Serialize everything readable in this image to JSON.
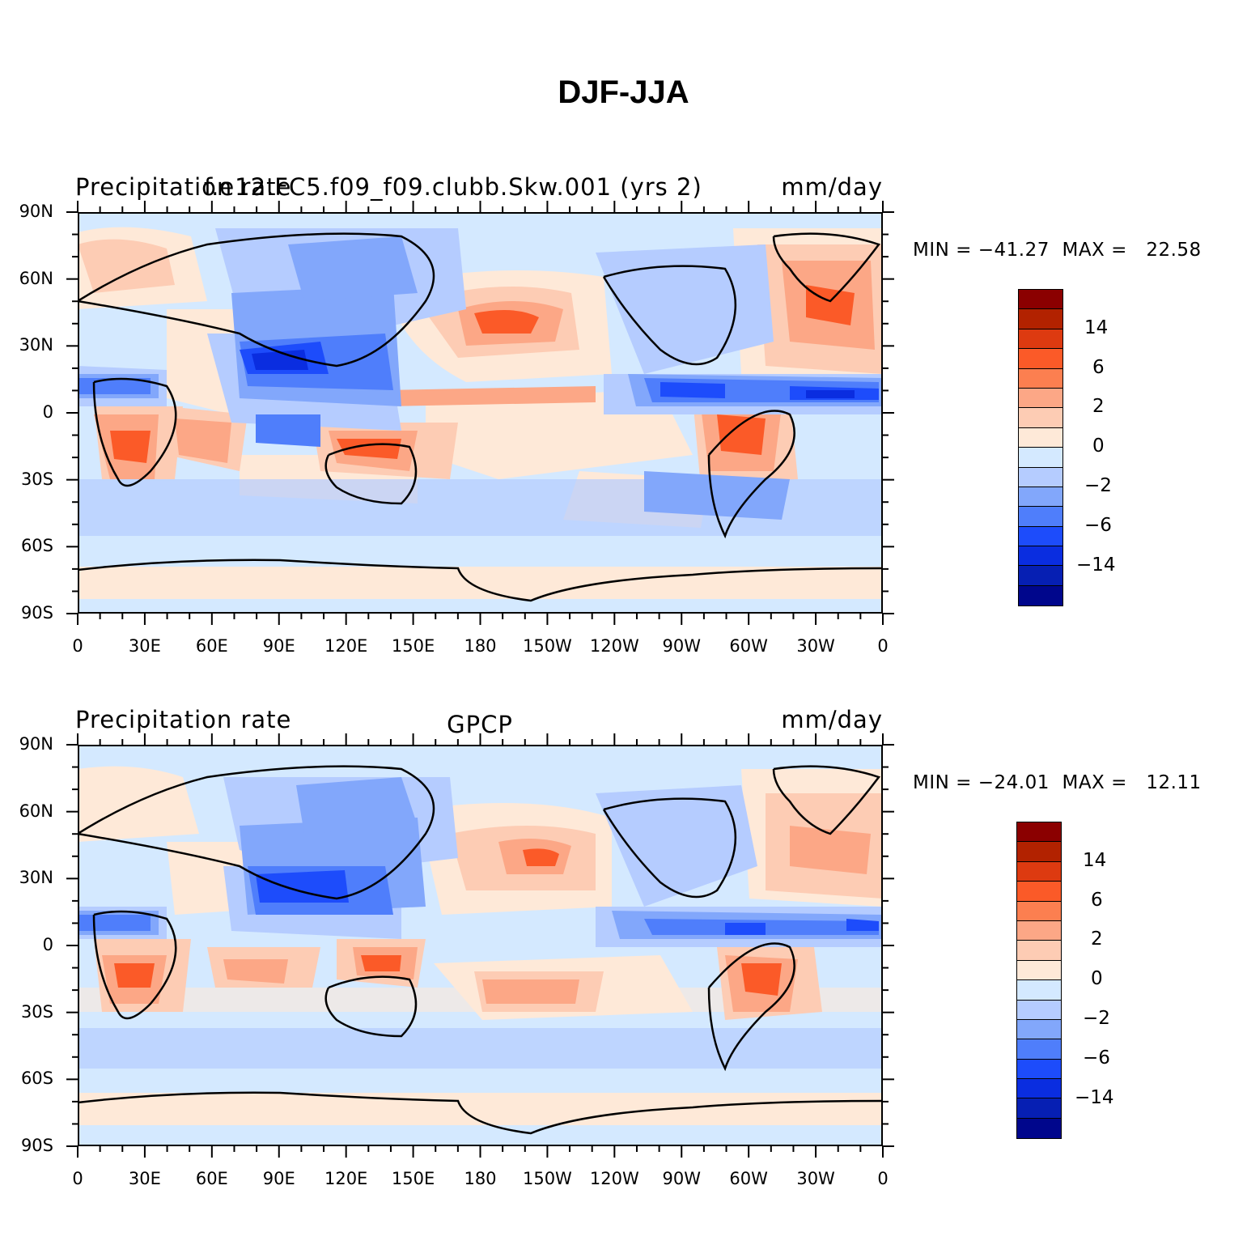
{
  "title": "DJF-JJA",
  "panels": [
    {
      "variable": "Precipitation rate",
      "case": "f.e12.FC5.f09_f09.clubb.Skw.001 (yrs 2)",
      "units": "mm/day",
      "min_label": "MIN = −41.27",
      "max_label": "MAX =   22.58"
    },
    {
      "variable": "Precipitation rate",
      "case": "GPCP",
      "units": "mm/day",
      "min_label": "MIN = −24.01",
      "max_label": "MAX =   12.11"
    }
  ],
  "lat_ticks": [
    "90N",
    "60N",
    "30N",
    "0",
    "30S",
    "60S",
    "90S"
  ],
  "lon_ticks": [
    "0",
    "30E",
    "60E",
    "90E",
    "120E",
    "150E",
    "180",
    "150W",
    "120W",
    "90W",
    "60W",
    "30W",
    "0"
  ],
  "colorbar": {
    "labels": [
      "14",
      "6",
      "2",
      "0",
      "−2",
      "−6",
      "−14"
    ],
    "colors": [
      "#8b0000",
      "#b22200",
      "#dd3a10",
      "#fb5a28",
      "#fc7f50",
      "#fca786",
      "#fdccb4",
      "#fee9d8",
      "#d4e9ff",
      "#b5ccff",
      "#82a7fb",
      "#4f7efb",
      "#1d4cfb",
      "#0a2de0",
      "#061fb3",
      "#00068c"
    ]
  }
}
